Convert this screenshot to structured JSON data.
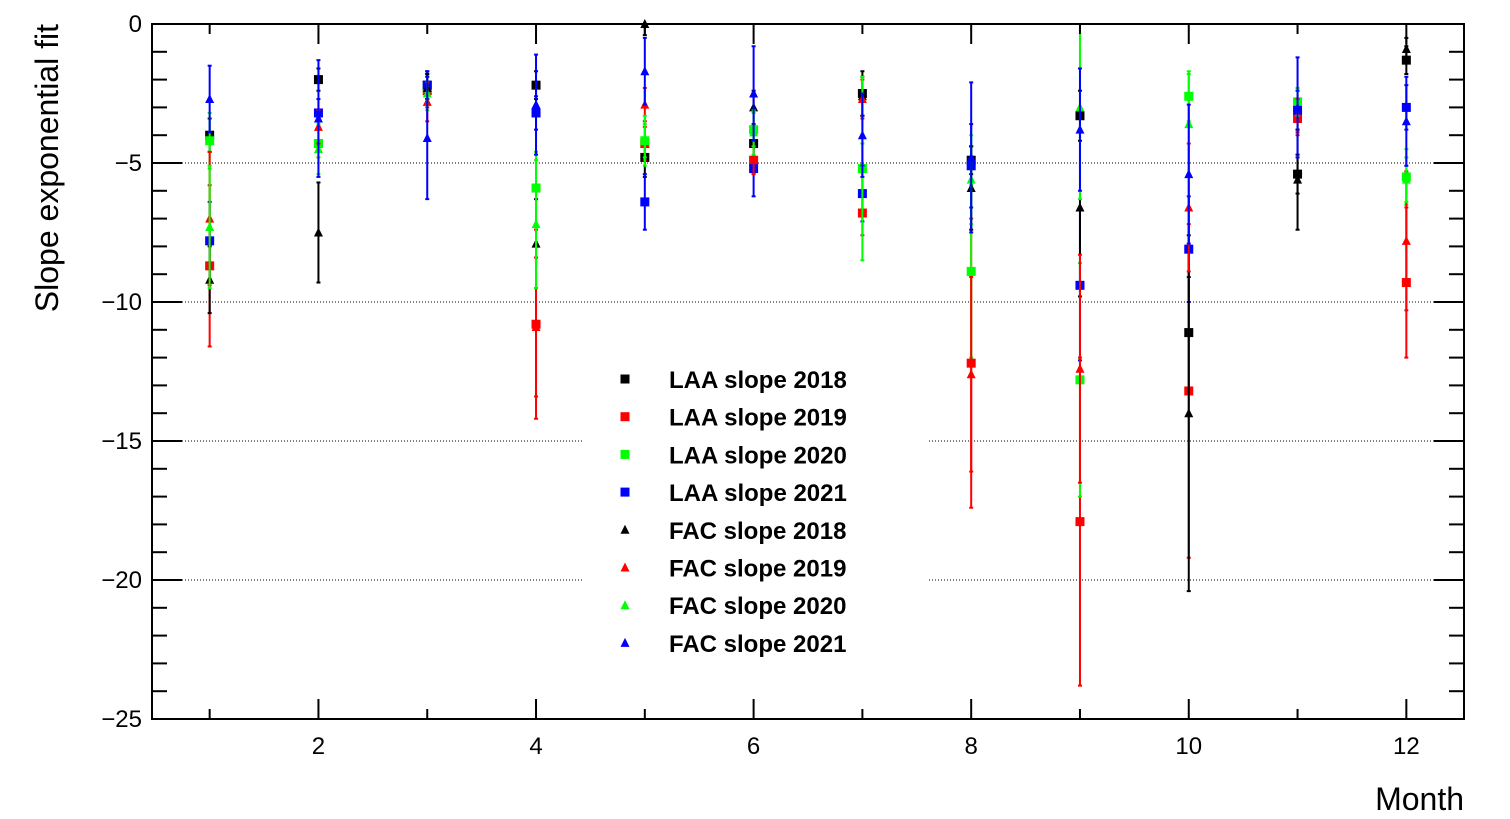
{
  "chart_data": {
    "type": "scatter",
    "title": "",
    "xlabel": "Month",
    "ylabel": "Slope exponential fit",
    "xlim": [
      0.47,
      12.53
    ],
    "ylim": [
      -25,
      0
    ],
    "xticks": [
      2,
      4,
      6,
      8,
      10,
      12
    ],
    "yticks": [
      0,
      -5,
      -10,
      -15,
      -20,
      -25
    ],
    "y_tick_labels": [
      "0",
      "−5",
      "−10",
      "−15",
      "−20",
      "−25"
    ],
    "grid": "horizontal dotted at −5, −10, −15, −20, −25",
    "legend_position": "center",
    "series": [
      {
        "name": "LAA slope 2018",
        "marker": "square",
        "color": "#000000",
        "x": [
          1,
          2,
          3,
          4,
          5,
          6,
          7,
          8,
          9,
          10,
          11,
          12
        ],
        "y": [
          -4.0,
          -2.0,
          -2.2,
          -2.2,
          -4.8,
          -4.3,
          -2.5,
          -4.9,
          -3.3,
          -11.1,
          -5.4,
          -1.3
        ],
        "err": [
          0.6,
          0.4,
          0.5,
          0.5,
          0.7,
          0.6,
          0.8,
          0.5,
          0.9,
          2.0,
          0.7,
          0.5
        ]
      },
      {
        "name": "LAA slope 2019",
        "marker": "square",
        "color": "#ff0000",
        "x": [
          1,
          2,
          3,
          4,
          5,
          6,
          7,
          8,
          9,
          10,
          11,
          12
        ],
        "y": [
          -8.7,
          -4.3,
          -2.4,
          -10.8,
          -4.3,
          -4.9,
          -6.8,
          -12.2,
          -17.9,
          -13.2,
          -3.4,
          -9.3
        ],
        "err": [
          2.9,
          0.5,
          0.6,
          3.4,
          0.6,
          0.5,
          0.8,
          5.2,
          5.9,
          6.0,
          0.6,
          2.7
        ]
      },
      {
        "name": "LAA slope 2020",
        "marker": "square",
        "color": "#00ff00",
        "x": [
          1,
          2,
          3,
          4,
          5,
          6,
          7,
          8,
          9,
          10,
          11,
          12
        ],
        "y": [
          -4.2,
          -4.3,
          -2.3,
          -5.9,
          -4.2,
          -3.8,
          -5.2,
          -8.9,
          -12.8,
          -2.6,
          -2.8,
          -5.5
        ],
        "err": [
          1.0,
          0.5,
          0.5,
          1.3,
          0.6,
          0.6,
          0.9,
          3.1,
          4.2,
          0.9,
          0.5,
          1.0
        ]
      },
      {
        "name": "LAA slope 2021",
        "marker": "square",
        "color": "#0000ff",
        "x": [
          1,
          2,
          3,
          4,
          5,
          6,
          7,
          8,
          9,
          10,
          11,
          12
        ],
        "y": [
          -7.8,
          -3.2,
          -2.2,
          -3.2,
          -6.4,
          -5.2,
          -6.1,
          -5.1,
          -9.4,
          -8.1,
          -3.1,
          -3.0
        ],
        "err": [
          1.4,
          0.5,
          0.5,
          0.6,
          1.0,
          1.0,
          1.0,
          1.5,
          2.7,
          1.9,
          0.7,
          0.8
        ]
      },
      {
        "name": "FAC slope 2018",
        "marker": "triangle",
        "color": "#000000",
        "x": [
          1,
          2,
          3,
          4,
          5,
          6,
          7,
          8,
          9,
          10,
          11,
          12
        ],
        "y": [
          -9.2,
          -7.5,
          -2.3,
          -7.9,
          0.0,
          -3.0,
          -2.6,
          -5.9,
          -6.6,
          -14.0,
          -5.6,
          -0.9
        ],
        "err": [
          1.2,
          1.8,
          0.5,
          1.6,
          0.4,
          0.6,
          0.7,
          1.5,
          3.2,
          6.4,
          1.8,
          0.4
        ]
      },
      {
        "name": "FAC slope 2019",
        "marker": "triangle",
        "color": "#ff0000",
        "x": [
          1,
          2,
          3,
          4,
          5,
          6,
          7,
          8,
          9,
          10,
          11,
          12
        ],
        "y": [
          -7.0,
          -3.7,
          -2.8,
          -10.9,
          -2.9,
          -4.8,
          -2.7,
          -12.6,
          -12.4,
          -6.6,
          -3.3,
          -7.8
        ],
        "err": [
          2.4,
          0.6,
          0.7,
          2.5,
          0.6,
          0.6,
          0.7,
          3.5,
          4.1,
          2.3,
          0.6,
          2.5
        ]
      },
      {
        "name": "FAC slope 2020",
        "marker": "triangle",
        "color": "#00ff00",
        "x": [
          1,
          2,
          3,
          4,
          5,
          6,
          7,
          8,
          9,
          10,
          11,
          12
        ],
        "y": [
          -7.3,
          -4.5,
          -2.5,
          -7.2,
          -4.2,
          -3.9,
          -5.2,
          -5.6,
          -3.0,
          -3.6,
          -2.8,
          -5.6
        ],
        "err": [
          2.2,
          0.9,
          0.6,
          2.3,
          0.9,
          0.8,
          3.3,
          1.6,
          3.3,
          1.8,
          0.5,
          0.8
        ]
      },
      {
        "name": "FAC slope 2021",
        "marker": "triangle",
        "color": "#0000ff",
        "x": [
          1,
          2,
          3,
          4,
          5,
          6,
          7,
          8,
          9,
          10,
          11,
          12
        ],
        "y": [
          -2.7,
          -3.4,
          -4.1,
          -2.9,
          -1.7,
          -2.5,
          -4.0,
          -4.8,
          -3.8,
          -5.4,
          -3.0,
          -3.5
        ],
        "err": [
          1.2,
          2.1,
          2.2,
          1.8,
          1.2,
          1.7,
          1.5,
          2.7,
          2.2,
          2.5,
          1.8,
          1.6
        ]
      }
    ]
  }
}
